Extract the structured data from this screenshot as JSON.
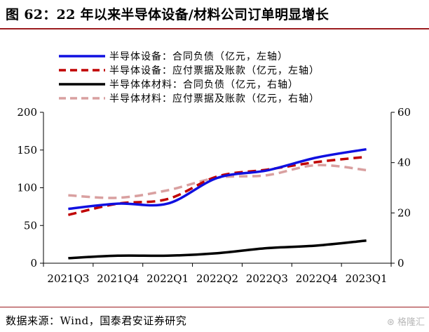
{
  "figure": {
    "title": "图 62：22 年以来半导体设备/材料公司订单明显增长",
    "source": "数据来源：Wind，国泰君安证券研究",
    "watermark": "⊛ 格隆汇"
  },
  "colors": {
    "title_rule": "#9b1c1f",
    "equip_contract": "#1010e0",
    "equip_payable": "#c00000",
    "mat_contract": "#000000",
    "mat_payable": "#d9a0a0"
  },
  "chart_data": {
    "type": "line",
    "categories": [
      "2021Q3",
      "2021Q4",
      "2022Q1",
      "2022Q2",
      "2022Q3",
      "2022Q4",
      "2023Q1"
    ],
    "y_left": {
      "min": 0,
      "max": 200,
      "ticks": [
        0,
        50,
        100,
        150,
        200
      ]
    },
    "y_right": {
      "min": 0,
      "max": 60,
      "ticks": [
        0,
        20,
        40,
        60
      ]
    },
    "grid": false,
    "legend_position": "top-left",
    "series": [
      {
        "name": "半导体设备：合同负债（亿元，左轴）",
        "axis": "left",
        "style": "solid",
        "color_key": "equip_contract",
        "values": [
          72,
          79,
          79,
          113,
          123,
          140,
          151
        ]
      },
      {
        "name": "半导体设备：应付票据及账款（亿元，左轴）",
        "axis": "left",
        "style": "dashed",
        "color_key": "equip_payable",
        "values": [
          64,
          79,
          85,
          115,
          124,
          134,
          141
        ]
      },
      {
        "name": "半导体体材料：合同负债（亿元，右轴）",
        "axis": "right",
        "style": "solid",
        "color_key": "mat_contract",
        "values": [
          2,
          3,
          3,
          4,
          6,
          7,
          9
        ]
      },
      {
        "name": "半导体材料：应付票据及账款（亿元，右轴）",
        "axis": "right",
        "style": "dashed",
        "color_key": "mat_payable",
        "values": [
          27,
          26,
          29,
          34,
          35,
          39,
          37
        ]
      }
    ]
  }
}
